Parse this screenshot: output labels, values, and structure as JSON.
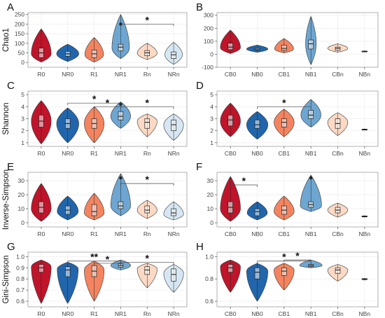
{
  "chart_data": [
    {
      "panel": "A",
      "type": "violin",
      "ylabel": "Chao1",
      "categories": [
        "R0",
        "NR0",
        "R1",
        "NR1",
        "Rn",
        "NRn"
      ],
      "yticks": [
        0,
        50,
        100,
        150,
        200,
        250
      ],
      "ylim": [
        -25,
        260
      ],
      "series": [
        {
          "min": 2,
          "q1": 25,
          "median": 50,
          "q3": 75,
          "max": 175,
          "mode": 45,
          "width": 0.85
        },
        {
          "min": 5,
          "q1": 32,
          "median": 45,
          "q3": 58,
          "max": 95,
          "mode": 45,
          "width": 0.95
        },
        {
          "min": 2,
          "q1": 25,
          "median": 45,
          "q3": 65,
          "max": 130,
          "mode": 40,
          "width": 0.8
        },
        {
          "min": 20,
          "q1": 60,
          "median": 80,
          "q3": 95,
          "max": 250,
          "mode": 75,
          "width": 0.75
        },
        {
          "min": 15,
          "q1": 35,
          "median": 50,
          "q3": 62,
          "max": 100,
          "mode": 48,
          "width": 0.85
        },
        {
          "min": -10,
          "q1": 20,
          "median": 40,
          "q3": 55,
          "max": 105,
          "mode": 40,
          "width": 0.75
        }
      ],
      "outliers": [
        [
          3,
          200
        ]
      ],
      "significance": [
        {
          "from": 3,
          "to": 5,
          "y": 200,
          "label": "*"
        }
      ]
    },
    {
      "panel": "B",
      "type": "violin",
      "ylabel": "",
      "categories": [
        "CB0",
        "NB0",
        "CB1",
        "NB1",
        "CBn",
        "NBn"
      ],
      "yticks": [
        -100,
        0,
        100,
        200,
        300
      ],
      "ylim": [
        -100,
        320
      ],
      "series": [
        {
          "min": 5,
          "q1": 35,
          "median": 55,
          "q3": 85,
          "max": 185,
          "mode": 50,
          "width": 0.85
        },
        {
          "min": 15,
          "q1": 32,
          "median": 40,
          "q3": 50,
          "max": 70,
          "mode": 40,
          "width": 0.9
        },
        {
          "min": 10,
          "q1": 30,
          "median": 45,
          "q3": 70,
          "max": 120,
          "mode": 40,
          "width": 0.8
        },
        {
          "min": -80,
          "q1": 40,
          "median": 80,
          "q3": 110,
          "max": 290,
          "mode": 80,
          "width": 0.45
        },
        {
          "min": 15,
          "q1": 30,
          "median": 45,
          "q3": 55,
          "max": 80,
          "mode": 45,
          "width": 0.85
        },
        {
          "min": 18,
          "q1": 22,
          "median": 22,
          "q3": 23,
          "max": 26,
          "mode": 22,
          "width": 0.25
        }
      ],
      "outliers": [],
      "significance": []
    },
    {
      "panel": "C",
      "type": "violin",
      "ylabel": "Shannon",
      "categories": [
        "R0",
        "NR0",
        "R1",
        "NR1",
        "Rn",
        "NRn"
      ],
      "yticks": [
        1,
        2,
        3,
        4,
        5
      ],
      "ylim": [
        0.7,
        5.3
      ],
      "series": [
        {
          "min": 0.9,
          "q1": 2.3,
          "median": 2.8,
          "q3": 3.3,
          "max": 4.5,
          "mode": 2.8,
          "width": 0.85
        },
        {
          "min": 1.0,
          "q1": 2.2,
          "median": 2.6,
          "q3": 3.0,
          "max": 3.9,
          "mode": 2.6,
          "width": 0.95
        },
        {
          "min": 1.0,
          "q1": 2.2,
          "median": 2.6,
          "q3": 3.0,
          "max": 4.0,
          "mode": 2.6,
          "width": 0.85
        },
        {
          "min": 2.2,
          "q1": 2.9,
          "median": 3.2,
          "q3": 3.6,
          "max": 4.4,
          "mode": 3.2,
          "width": 0.85
        },
        {
          "min": 1.5,
          "q1": 2.2,
          "median": 2.7,
          "q3": 3.0,
          "max": 3.4,
          "mode": 2.8,
          "width": 0.85
        },
        {
          "min": 1.2,
          "q1": 2.0,
          "median": 2.5,
          "q3": 2.9,
          "max": 3.4,
          "mode": 2.5,
          "width": 0.85
        }
      ],
      "outliers": [
        [
          3,
          4.2
        ]
      ],
      "significance": [
        {
          "from": 1,
          "to": 3,
          "y": 4.3,
          "label": "*"
        },
        {
          "from": 2,
          "to": 3,
          "y": 4.0,
          "label": "*"
        },
        {
          "from": 3,
          "to": 5,
          "y": 4.0,
          "label": "*"
        }
      ]
    },
    {
      "panel": "D",
      "type": "violin",
      "ylabel": "",
      "categories": [
        "CB0",
        "NB0",
        "CB1",
        "NB1",
        "CBn",
        "NBn"
      ],
      "yticks": [
        1,
        2,
        3,
        4,
        5
      ],
      "ylim": [
        0.7,
        5.3
      ],
      "series": [
        {
          "min": 1.5,
          "q1": 2.4,
          "median": 2.9,
          "q3": 3.3,
          "max": 4.3,
          "mode": 2.8,
          "width": 0.85
        },
        {
          "min": 1.3,
          "q1": 2.2,
          "median": 2.5,
          "q3": 2.9,
          "max": 3.6,
          "mode": 2.5,
          "width": 0.9
        },
        {
          "min": 1.5,
          "q1": 2.3,
          "median": 2.7,
          "q3": 3.0,
          "max": 3.8,
          "mode": 2.7,
          "width": 0.85
        },
        {
          "min": 2.3,
          "q1": 3.0,
          "median": 3.3,
          "q3": 3.7,
          "max": 4.6,
          "mode": 3.3,
          "width": 0.85
        },
        {
          "min": 1.6,
          "q1": 2.2,
          "median": 2.6,
          "q3": 3.0,
          "max": 3.5,
          "mode": 2.7,
          "width": 0.85
        },
        {
          "min": 2.05,
          "q1": 2.1,
          "median": 2.1,
          "q3": 2.12,
          "max": 2.15,
          "mode": 2.1,
          "width": 0.25
        }
      ],
      "outliers": [],
      "significance": [
        {
          "from": 1,
          "to": 3,
          "y": 4.0,
          "label": "*"
        }
      ]
    },
    {
      "panel": "E",
      "type": "violin",
      "ylabel": "Inverse-Simpson",
      "categories": [
        "R0",
        "NR0",
        "R1",
        "NR1",
        "Rn",
        "NRn"
      ],
      "yticks": [
        0,
        10,
        20,
        30
      ],
      "ylim": [
        -3,
        36
      ],
      "series": [
        {
          "min": 1,
          "q1": 7,
          "median": 11,
          "q3": 15,
          "max": 28,
          "mode": 10,
          "width": 0.85
        },
        {
          "min": 2,
          "q1": 6,
          "median": 9,
          "q3": 12,
          "max": 19,
          "mode": 8,
          "width": 0.9
        },
        {
          "min": 2,
          "q1": 5,
          "median": 8,
          "q3": 13,
          "max": 21,
          "mode": 7,
          "width": 0.85
        },
        {
          "min": 5,
          "q1": 10,
          "median": 12,
          "q3": 15,
          "max": 35,
          "mode": 12,
          "width": 0.85
        },
        {
          "min": 3,
          "q1": 7,
          "median": 9,
          "q3": 12,
          "max": 16,
          "mode": 9,
          "width": 0.85
        },
        {
          "min": 2,
          "q1": 5,
          "median": 7,
          "q3": 10,
          "max": 15,
          "mode": 6,
          "width": 0.85
        }
      ],
      "outliers": [
        [
          3,
          32
        ]
      ],
      "significance": [
        {
          "from": 3,
          "to": 5,
          "y": 28,
          "label": "*"
        }
      ]
    },
    {
      "panel": "F",
      "type": "violin",
      "ylabel": "",
      "categories": [
        "CB0",
        "NB0",
        "CB1",
        "NB1",
        "CBn",
        "NBn"
      ],
      "yticks": [
        0,
        10,
        20,
        30
      ],
      "ylim": [
        -3,
        36
      ],
      "series": [
        {
          "min": 1,
          "q1": 7,
          "median": 11,
          "q3": 15,
          "max": 33,
          "mode": 10,
          "width": 0.85
        },
        {
          "min": 2,
          "q1": 5,
          "median": 8,
          "q3": 10,
          "max": 15,
          "mode": 7,
          "width": 0.85
        },
        {
          "min": 2,
          "q1": 6,
          "median": 9,
          "q3": 12,
          "max": 19,
          "mode": 8,
          "width": 0.85
        },
        {
          "min": 8,
          "q1": 11,
          "median": 13,
          "q3": 15,
          "max": 34,
          "mode": 12,
          "width": 0.9
        },
        {
          "min": 4,
          "q1": 7,
          "median": 9,
          "q3": 11,
          "max": 14,
          "mode": 9,
          "width": 0.85
        },
        {
          "min": 4,
          "q1": 4.5,
          "median": 4.5,
          "q3": 4.8,
          "max": 5,
          "mode": 4.5,
          "width": 0.25
        }
      ],
      "outliers": [
        [
          3,
          32
        ]
      ],
      "significance": [
        {
          "from": 0,
          "to": 1,
          "y": 27,
          "label": "*"
        }
      ]
    },
    {
      "panel": "G",
      "type": "violin",
      "ylabel": "Gini-Simpson",
      "categories": [
        "R0",
        "NR0",
        "R1",
        "NR1",
        "Rn",
        "NRn"
      ],
      "yticks": [
        0.6,
        0.7,
        0.8,
        0.9,
        1.0
      ],
      "ylim": [
        0.55,
        1.04
      ],
      "series": [
        {
          "min": 0.58,
          "q1": 0.86,
          "median": 0.9,
          "q3": 0.93,
          "max": 0.97,
          "mode": 0.91,
          "width": 0.85
        },
        {
          "min": 0.58,
          "q1": 0.82,
          "median": 0.88,
          "q3": 0.91,
          "max": 0.95,
          "mode": 0.89,
          "width": 0.9
        },
        {
          "min": 0.6,
          "q1": 0.82,
          "median": 0.87,
          "q3": 0.92,
          "max": 0.96,
          "mode": 0.88,
          "width": 0.85
        },
        {
          "min": 0.88,
          "q1": 0.905,
          "median": 0.92,
          "q3": 0.935,
          "max": 0.97,
          "mode": 0.92,
          "width": 0.85
        },
        {
          "min": 0.72,
          "q1": 0.84,
          "median": 0.88,
          "q3": 0.91,
          "max": 0.94,
          "mode": 0.89,
          "width": 0.85
        },
        {
          "min": 0.68,
          "q1": 0.78,
          "median": 0.84,
          "q3": 0.89,
          "max": 0.93,
          "mode": 0.85,
          "width": 0.85
        }
      ],
      "outliers": [],
      "significance": [
        {
          "from": 1,
          "to": 3,
          "y": 0.96,
          "label": "**"
        },
        {
          "from": 2,
          "to": 3,
          "y": 0.94,
          "label": "*"
        },
        {
          "from": 3,
          "to": 5,
          "y": 0.95,
          "label": "*"
        }
      ]
    },
    {
      "panel": "H",
      "type": "violin",
      "ylabel": "",
      "categories": [
        "CB0",
        "NB0",
        "CB1",
        "NB1",
        "CBn",
        "NBn"
      ],
      "yticks": [
        0.6,
        0.8,
        1.0
      ],
      "ylim": [
        0.55,
        1.04
      ],
      "series": [
        {
          "min": 0.68,
          "q1": 0.86,
          "median": 0.9,
          "q3": 0.93,
          "max": 0.97,
          "mode": 0.91,
          "width": 0.85
        },
        {
          "min": 0.6,
          "q1": 0.8,
          "median": 0.86,
          "q3": 0.9,
          "max": 0.94,
          "mode": 0.87,
          "width": 0.9
        },
        {
          "min": 0.7,
          "q1": 0.83,
          "median": 0.87,
          "q3": 0.9,
          "max": 0.94,
          "mode": 0.88,
          "width": 0.85
        },
        {
          "min": 0.9,
          "q1": 0.91,
          "median": 0.92,
          "q3": 0.93,
          "max": 0.97,
          "mode": 0.92,
          "width": 0.95
        },
        {
          "min": 0.78,
          "q1": 0.85,
          "median": 0.88,
          "q3": 0.9,
          "max": 0.93,
          "mode": 0.88,
          "width": 0.85
        },
        {
          "min": 0.79,
          "q1": 0.795,
          "median": 0.8,
          "q3": 0.8,
          "max": 0.805,
          "mode": 0.8,
          "width": 0.25
        }
      ],
      "outliers": [],
      "significance": [
        {
          "from": 1,
          "to": 3,
          "y": 0.96,
          "label": "*"
        },
        {
          "from": 2,
          "to": 3,
          "y": 0.97,
          "label": "*"
        }
      ]
    }
  ],
  "palette": {
    "fills": [
      "#c0142a",
      "#2166ac",
      "#f4845f",
      "#6ea6d2",
      "#fbd9c4",
      "#d6e7f3"
    ],
    "grid": "#ececec",
    "frame": "#9e9e9e",
    "text": "#111111"
  }
}
